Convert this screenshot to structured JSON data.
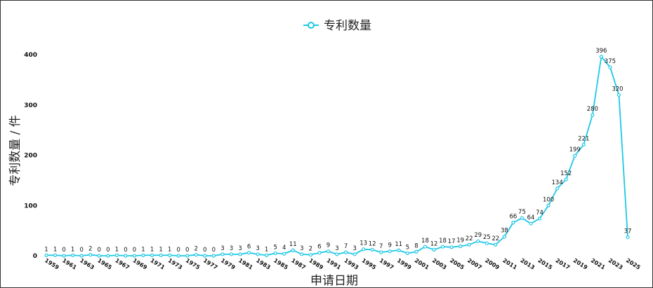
{
  "chart_data": {
    "type": "line",
    "title": "",
    "xlabel": "申请日期",
    "ylabel": "专利数量 / 件",
    "ylim": [
      0,
      400
    ],
    "y_ticks": [
      0,
      100,
      200,
      300,
      400
    ],
    "grid": false,
    "legend_position": "top-center",
    "x": [
      1959,
      1960,
      1961,
      1962,
      1963,
      1964,
      1965,
      1966,
      1967,
      1968,
      1969,
      1970,
      1971,
      1972,
      1973,
      1974,
      1975,
      1976,
      1977,
      1978,
      1979,
      1980,
      1981,
      1982,
      1983,
      1984,
      1985,
      1986,
      1987,
      1988,
      1989,
      1990,
      1991,
      1992,
      1993,
      1994,
      1995,
      1996,
      1997,
      1998,
      1999,
      2000,
      2001,
      2002,
      2003,
      2004,
      2005,
      2006,
      2007,
      2008,
      2009,
      2010,
      2011,
      2012,
      2013,
      2014,
      2015,
      2016,
      2017,
      2018,
      2019,
      2020,
      2021,
      2022,
      2023,
      2024,
      2025
    ],
    "x_tick_labels": [
      "1959",
      "1961",
      "1963",
      "1965",
      "1967",
      "1969",
      "1971",
      "1973",
      "1975",
      "1977",
      "1979",
      "1981",
      "1983",
      "1985",
      "1987",
      "1989",
      "1991",
      "1993",
      "1995",
      "1997",
      "1999",
      "2001",
      "2003",
      "2005",
      "2007",
      "2009",
      "2011",
      "2013",
      "2015",
      "2017",
      "2019",
      "2021",
      "2023",
      "2025"
    ],
    "series": [
      {
        "name": "专利数量",
        "color": "#1ec8e6",
        "values": [
          1,
          1,
          0,
          1,
          0,
          2,
          0,
          0,
          1,
          0,
          0,
          1,
          1,
          1,
          1,
          0,
          0,
          2,
          0,
          0,
          3,
          3,
          3,
          6,
          3,
          1,
          5,
          4,
          11,
          3,
          2,
          6,
          9,
          3,
          7,
          3,
          13,
          12,
          7,
          9,
          11,
          5,
          8,
          18,
          12,
          18,
          17,
          19,
          22,
          29,
          25,
          22,
          38,
          66,
          75,
          64,
          74,
          100,
          134,
          152,
          199,
          221,
          280,
          396,
          375,
          320,
          37
        ]
      }
    ]
  }
}
